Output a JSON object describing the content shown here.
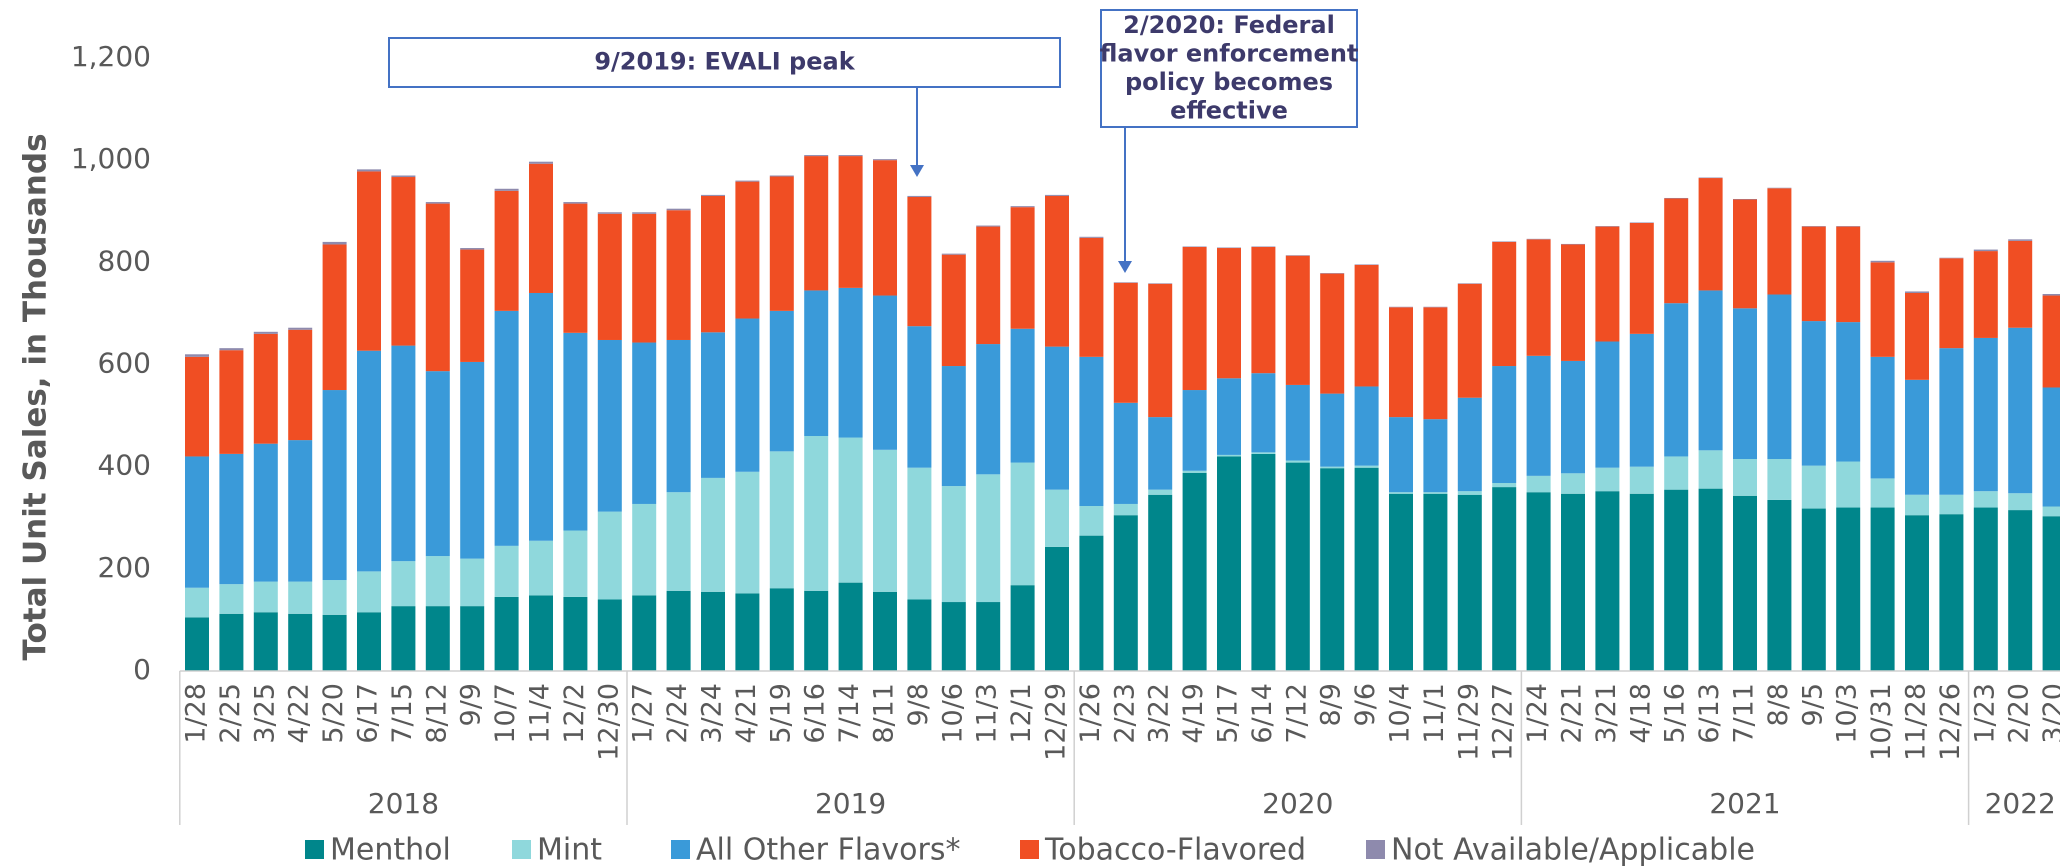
{
  "chart_data": {
    "type": "stacked_bar",
    "y_label": "Total Unit Sales, in Thousands",
    "ylim": [
      0,
      1200
    ],
    "yticks": [
      0,
      200,
      400,
      600,
      800,
      {
        "value": 1000,
        "label": "1,000"
      },
      {
        "value": 1200,
        "label": "1,200"
      }
    ],
    "groups": [
      {
        "label": "2018",
        "categories": [
          "1/28",
          "2/25",
          "3/25",
          "4/22",
          "5/20",
          "6/17",
          "7/15",
          "8/12",
          "9/9",
          "10/7",
          "11/4",
          "12/2",
          "12/30"
        ]
      },
      {
        "label": "2019",
        "categories": [
          "1/27",
          "2/24",
          "3/24",
          "4/21",
          "5/19",
          "6/16",
          "7/14",
          "8/11",
          "9/8",
          "10/6",
          "11/3",
          "12/1",
          "12/29"
        ]
      },
      {
        "label": "2020",
        "categories": [
          "1/26",
          "2/23",
          "3/22",
          "4/19",
          "5/17",
          "6/14",
          "7/12",
          "8/9",
          "9/6",
          "10/4",
          "11/1",
          "11/29",
          "12/27"
        ]
      },
      {
        "label": "2021",
        "categories": [
          "1/24",
          "2/21",
          "3/21",
          "4/18",
          "5/16",
          "6/13",
          "7/11",
          "8/8",
          "9/5",
          "10/3",
          "10/31",
          "11/28",
          "12/26"
        ]
      },
      {
        "label": "2022",
        "categories": [
          "1/23",
          "2/20",
          "3/20"
        ]
      }
    ],
    "series": [
      {
        "name": "Menthol",
        "color": "#00868b",
        "values": [
          105,
          112,
          115,
          112,
          110,
          115,
          127,
          127,
          127,
          145,
          148,
          145,
          140,
          148,
          157,
          155,
          152,
          162,
          157,
          173,
          155,
          140,
          135,
          135,
          168,
          243,
          265,
          305,
          345,
          388,
          420,
          425,
          408,
          397,
          398,
          347,
          347,
          345,
          360,
          350,
          347,
          352,
          347,
          355,
          357,
          343,
          335,
          318,
          320,
          320,
          305,
          307,
          320,
          315,
          303
        ]
      },
      {
        "name": "Mint",
        "color": "#8fd8dc",
        "values": [
          58,
          58,
          60,
          63,
          68,
          80,
          88,
          98,
          93,
          100,
          107,
          130,
          172,
          179,
          193,
          223,
          238,
          268,
          303,
          284,
          278,
          258,
          227,
          250,
          240,
          112,
          58,
          22,
          10,
          4,
          3,
          3,
          4,
          3,
          4,
          3,
          3,
          7,
          8,
          32,
          40,
          46,
          53,
          65,
          75,
          72,
          80,
          84,
          90,
          57,
          40,
          38,
          32,
          33,
          19
        ]
      },
      {
        "name": "All Other Flavors*",
        "color": "#3a9ad9",
        "values": [
          257,
          255,
          270,
          277,
          372,
          432,
          422,
          362,
          385,
          460,
          485,
          387,
          336,
          316,
          298,
          285,
          300,
          275,
          285,
          293,
          302,
          277,
          235,
          255,
          262,
          280,
          292,
          198,
          142,
          158,
          150,
          155,
          148,
          143,
          155,
          147,
          143,
          183,
          229,
          235,
          220,
          247,
          260,
          300,
          313,
          295,
          322,
          283,
          273,
          238,
          225,
          287,
          300,
          324,
          233
        ]
      },
      {
        "name": "Tobacco-Flavored",
        "color": "#f04e23",
        "values": [
          195,
          203,
          215,
          216,
          285,
          351,
          330,
          328,
          220,
          235,
          253,
          253,
          247,
          252,
          254,
          267,
          268,
          263,
          263,
          258,
          265,
          253,
          218,
          230,
          238,
          295,
          233,
          235,
          261,
          280,
          255,
          247,
          253,
          235,
          238,
          215,
          219,
          223,
          243,
          228,
          228,
          225,
          217,
          205,
          220,
          213,
          208,
          185,
          187,
          185,
          170,
          176,
          170,
          170,
          180
        ]
      },
      {
        "name": "Not Available/Applicable",
        "color": "#8e8aad",
        "values": [
          5,
          4,
          4,
          4,
          5,
          4,
          3,
          3,
          3,
          4,
          4,
          3,
          3,
          3,
          3,
          2,
          2,
          2,
          2,
          2,
          2,
          2,
          2,
          2,
          2,
          2,
          2,
          1,
          1,
          1,
          1,
          1,
          1,
          1,
          1,
          1,
          1,
          1,
          1,
          1,
          1,
          1,
          1,
          1,
          1,
          1,
          1,
          1,
          1,
          3,
          3,
          1,
          3,
          3,
          3
        ]
      }
    ],
    "annotations": [
      {
        "lines": [
          "9/2019: EVALI peak"
        ]
      },
      {
        "lines": [
          "2/2020: Federal",
          "flavor enforcement",
          "policy becomes",
          "effective"
        ]
      }
    ]
  }
}
